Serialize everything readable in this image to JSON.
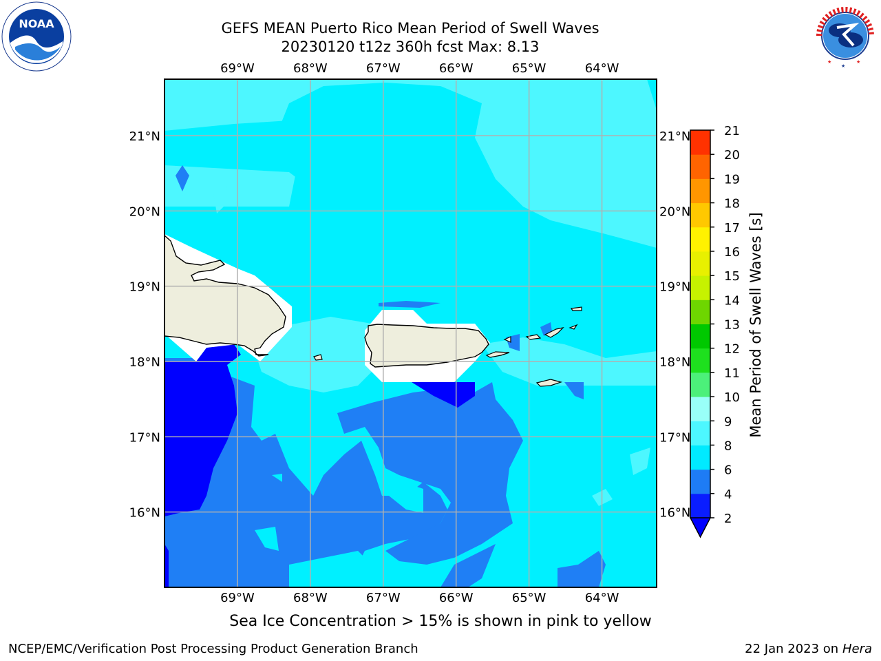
{
  "header": {
    "title_line1": "GEFS MEAN Puerto Rico Mean Period of Swell Waves",
    "title_line2": "20230120 t12z 360h fcst   Max: 8.13"
  },
  "logos": {
    "left": "NOAA",
    "left_ring_text": "NATIONAL OCEANIC AND ATMOSPHERIC ADMINISTRATION · U.S. DEPARTMENT OF COMMERCE",
    "right_ring_text": "NATIONAL WEATHER SERVICE"
  },
  "map": {
    "lon_labels": [
      "69°W",
      "68°W",
      "67°W",
      "66°W",
      "65°W",
      "64°W"
    ],
    "lat_labels": [
      "21°N",
      "20°N",
      "19°N",
      "18°N",
      "17°N",
      "16°N"
    ],
    "lon_values": [
      -69,
      -68,
      -67,
      -66,
      -65,
      -64
    ],
    "lat_values": [
      21,
      20,
      19,
      18,
      17,
      16
    ],
    "lon_range": [
      -70.0,
      -63.25
    ],
    "lat_range": [
      15.0,
      21.75
    ]
  },
  "colorbar": {
    "label": "Mean Period of Swell Waves [s]",
    "ticks": [
      "2",
      "4",
      "6",
      "8",
      "9",
      "10",
      "11",
      "12",
      "13",
      "14",
      "15",
      "16",
      "17",
      "18",
      "19",
      "20",
      "21"
    ],
    "colors": [
      "#0a1dff",
      "#1e7cf5",
      "#00eaff",
      "#4df7ff",
      "#99fff8",
      "#4cf07a",
      "#1ee01e",
      "#00c800",
      "#6ed600",
      "#c6f200",
      "#e8f000",
      "#fff200",
      "#ffc800",
      "#ff9600",
      "#ff6400",
      "#ff3200",
      "#ff0000"
    ],
    "extend_color": "#0000ff"
  },
  "colors": {
    "field_base": "#00f0ff",
    "field_light": "#4df7ff",
    "field_mid": "#1f7ff5",
    "field_deep": "#0000ff",
    "land": "#eeeedd",
    "mask": "#ffffff",
    "grid": "#b0b0b0"
  },
  "footer": {
    "note": "Sea Ice Concentration > 15% is shown in pink to yellow",
    "credit_left": "NCEP/EMC/Verification Post Processing Product Generation Branch",
    "credit_right_prefix": "22 Jan 2023 on ",
    "credit_right_host": "Hera"
  }
}
